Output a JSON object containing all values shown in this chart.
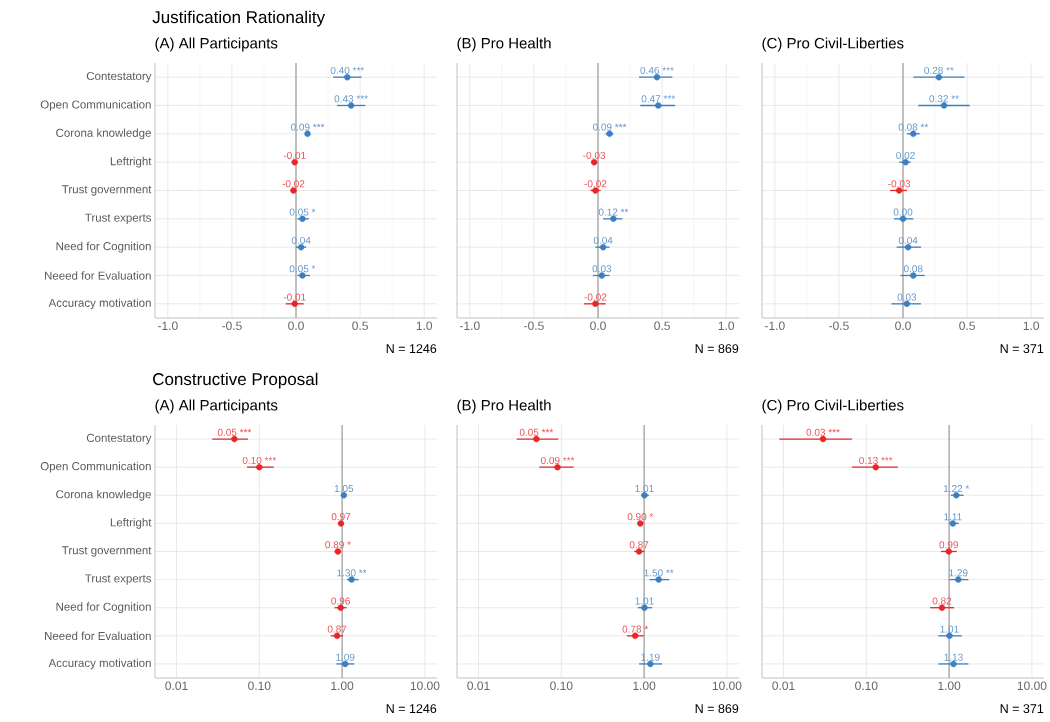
{
  "chart_data": [
    {
      "type": "scatter",
      "orientation": "horizontal",
      "title": "Justification Rationality",
      "subtitle": "(A) All Participants",
      "categories": [
        "Contestatory",
        "Open Communication",
        "Corona knowledge",
        "Leftright",
        "Trust government",
        "Trust experts",
        "Need for Cognition",
        "Neeed for Evaluation",
        "Accuracy motivation"
      ],
      "values": [
        0.4,
        0.43,
        0.09,
        -0.01,
        -0.02,
        0.05,
        0.04,
        0.05,
        -0.01
      ],
      "errors": [
        [
          0.29,
          0.51
        ],
        [
          0.32,
          0.54
        ],
        [
          0.07,
          0.11
        ],
        [
          -0.03,
          0.01
        ],
        [
          -0.04,
          0.0
        ],
        [
          0.01,
          0.1
        ],
        [
          0.0,
          0.08
        ],
        [
          0.01,
          0.11
        ],
        [
          -0.08,
          0.06
        ]
      ],
      "value_labels": [
        "0.40 ***",
        "0.43 ***",
        "0.09 ***",
        "-0.01",
        "-0.02",
        "0.05 *",
        "0.04",
        "0.05 *",
        "-0.01"
      ],
      "colors": [
        "#3a7fc1",
        "#3a7fc1",
        "#3a7fc1",
        "#e8262a",
        "#e8262a",
        "#3a7fc1",
        "#3a7fc1",
        "#3a7fc1",
        "#e8262a"
      ],
      "xlim": [
        -1.1,
        1.1
      ],
      "xticks": [
        {
          "value": -1,
          "label": "-1.0"
        },
        -0.5,
        {
          "value": 0,
          "label": "0.0"
        },
        0.5,
        {
          "value": 1,
          "label": "1.0"
        }
      ],
      "ref_lines": [
        {
          "axis": "x",
          "value": 0,
          "color": "#8c8c8c"
        }
      ],
      "annotations": [
        "N = 1246"
      ],
      "grid": true,
      "marker": "circle"
    },
    {
      "type": "scatter",
      "orientation": "horizontal",
      "subtitle": "(B) Pro Health",
      "categories": [
        null,
        null,
        null,
        null,
        null,
        null,
        null,
        null,
        null
      ],
      "values": [
        0.46,
        0.47,
        0.09,
        -0.03,
        -0.02,
        0.12,
        0.04,
        0.03,
        -0.02
      ],
      "errors": [
        [
          0.32,
          0.58
        ],
        [
          0.33,
          0.6
        ],
        [
          0.06,
          0.12
        ],
        [
          -0.05,
          -0.01
        ],
        [
          -0.06,
          0.02
        ],
        [
          0.04,
          0.19
        ],
        [
          -0.02,
          0.09
        ],
        [
          -0.04,
          0.09
        ],
        [
          -0.11,
          0.06
        ]
      ],
      "value_labels": [
        "0.46 ***",
        "0.47 ***",
        "0.09 ***",
        "-0.03",
        "-0.02",
        "0.12 **",
        "0.04",
        "0.03",
        "-0.02"
      ],
      "colors": [
        "#3a7fc1",
        "#3a7fc1",
        "#3a7fc1",
        "#e8262a",
        "#e8262a",
        "#3a7fc1",
        "#3a7fc1",
        "#3a7fc1",
        "#e8262a"
      ],
      "xlim": [
        -1.1,
        1.1
      ],
      "xticks": [
        {
          "value": -1,
          "label": "-1.0"
        },
        -0.5,
        {
          "value": 0,
          "label": "0.0"
        },
        0.5,
        {
          "value": 1,
          "label": "1.0"
        }
      ],
      "ref_lines": [
        {
          "axis": "x",
          "value": 0,
          "color": "#8c8c8c"
        }
      ],
      "annotations": [
        "N = 869"
      ],
      "grid": true,
      "marker": "circle",
      "tick_labels": "x"
    },
    {
      "type": "scatter",
      "orientation": "horizontal",
      "subtitle": "(C) Pro Civil-Liberties",
      "categories": [
        null,
        null,
        null,
        null,
        null,
        null,
        null,
        null,
        null
      ],
      "values": [
        0.28,
        0.32,
        0.08,
        0.02,
        -0.03,
        0.0,
        0.04,
        0.08,
        0.03
      ],
      "errors": [
        [
          0.08,
          0.48
        ],
        [
          0.12,
          0.52
        ],
        [
          0.03,
          0.13
        ],
        [
          -0.03,
          0.06
        ],
        [
          -0.1,
          0.03
        ],
        [
          -0.07,
          0.08
        ],
        [
          -0.05,
          0.14
        ],
        [
          -0.02,
          0.17
        ],
        [
          -0.09,
          0.14
        ]
      ],
      "value_labels": [
        "0.28 **",
        "0.32 **",
        "0.08 **",
        "0.02",
        "-0.03",
        "0.00",
        "0.04",
        "0.08",
        "0.03"
      ],
      "colors": [
        "#3a7fc1",
        "#3a7fc1",
        "#3a7fc1",
        "#3a7fc1",
        "#e8262a",
        "#3a7fc1",
        "#3a7fc1",
        "#3a7fc1",
        "#3a7fc1"
      ],
      "xlim": [
        -1.1,
        1.1
      ],
      "xticks": [
        {
          "value": -1,
          "label": "-1.0"
        },
        -0.5,
        {
          "value": 0,
          "label": "0.0"
        },
        0.5,
        {
          "value": 1,
          "label": "1.0"
        }
      ],
      "ref_lines": [
        {
          "axis": "x",
          "value": 0,
          "color": "#8c8c8c"
        }
      ],
      "annotations": [
        "N = 371"
      ],
      "grid": true,
      "marker": "circle",
      "tick_labels": "x"
    },
    {
      "type": "scatter",
      "orientation": "horizontal",
      "title": "Constructive Proposal",
      "subtitle": "(A) All Participants",
      "categories": [
        "Contestatory",
        "Open Communication",
        "Corona knowledge",
        "Leftright",
        "Trust government",
        "Trust experts",
        "Need for Cognition",
        "Neeed for Evaluation",
        "Accuracy motivation"
      ],
      "values": [
        0.05,
        0.1,
        1.05,
        0.97,
        0.89,
        1.3,
        0.96,
        0.87,
        1.09
      ],
      "errors": [
        [
          0.027,
          0.073
        ],
        [
          0.071,
          0.149
        ],
        [
          1.0,
          1.1
        ],
        [
          0.93,
          1.01
        ],
        [
          0.81,
          0.97
        ],
        [
          1.14,
          1.58
        ],
        [
          0.81,
          1.13
        ],
        [
          0.73,
          1.03
        ],
        [
          0.85,
          1.4
        ]
      ],
      "value_labels": [
        "0.05 ***",
        "0.10 ***",
        "1.05",
        "0.97",
        "0.89 *",
        "1.30 **",
        "0.96",
        "0.87",
        "1.09"
      ],
      "colors": [
        "#e8262a",
        "#e8262a",
        "#3a7fc1",
        "#e8262a",
        "#e8262a",
        "#3a7fc1",
        "#e8262a",
        "#e8262a",
        "#3a7fc1"
      ],
      "log": "x",
      "xlim": [
        0.0055,
        14
      ],
      "xticks": [
        0.01,
        {
          "value": 0.1,
          "label": "0.10"
        },
        {
          "value": 1,
          "label": "1.00"
        },
        {
          "value": 10,
          "label": "10.00"
        }
      ],
      "ref_lines": [
        {
          "axis": "x",
          "value": 1,
          "color": "#8c8c8c"
        }
      ],
      "annotations": [
        "N = 1246"
      ],
      "grid": true,
      "marker": "circle"
    },
    {
      "type": "scatter",
      "orientation": "horizontal",
      "subtitle": "(B) Pro Health",
      "categories": [
        null,
        null,
        null,
        null,
        null,
        null,
        null,
        null,
        null
      ],
      "values": [
        0.05,
        0.09,
        1.01,
        0.9,
        0.87,
        1.5,
        1.01,
        0.78,
        1.19
      ],
      "errors": [
        [
          0.029,
          0.092
        ],
        [
          0.054,
          0.141
        ],
        [
          0.92,
          1.14
        ],
        [
          0.85,
          0.96
        ],
        [
          0.76,
          1.01
        ],
        [
          1.16,
          2.01
        ],
        [
          0.84,
          1.25
        ],
        [
          0.62,
          0.99
        ],
        [
          0.87,
          1.65
        ]
      ],
      "value_labels": [
        "0.05 ***",
        "0.09 ***",
        "1.01",
        "0.90 *",
        "0.87",
        "1.50 **",
        "1.01",
        "0.78 *",
        "1.19"
      ],
      "colors": [
        "#e8262a",
        "#e8262a",
        "#3a7fc1",
        "#e8262a",
        "#e8262a",
        "#3a7fc1",
        "#3a7fc1",
        "#e8262a",
        "#3a7fc1"
      ],
      "log": "x",
      "xlim": [
        0.0055,
        14
      ],
      "xticks": [
        0.01,
        {
          "value": 0.1,
          "label": "0.10"
        },
        {
          "value": 1,
          "label": "1.00"
        },
        {
          "value": 10,
          "label": "10.00"
        }
      ],
      "ref_lines": [
        {
          "axis": "x",
          "value": 1,
          "color": "#8c8c8c"
        }
      ],
      "annotations": [
        "N = 869"
      ],
      "grid": true,
      "marker": "circle",
      "tick_labels": "x"
    },
    {
      "type": "scatter",
      "orientation": "horizontal",
      "subtitle": "(C) Pro Civil-Liberties",
      "categories": [
        null,
        null,
        null,
        null,
        null,
        null,
        null,
        null,
        null
      ],
      "values": [
        0.03,
        0.13,
        1.22,
        1.11,
        0.99,
        1.29,
        0.82,
        1.01,
        1.13
      ],
      "errors": [
        [
          0.0089,
          0.067
        ],
        [
          0.067,
          0.24
        ],
        [
          1.05,
          1.49
        ],
        [
          1.01,
          1.31
        ],
        [
          0.8,
          1.24
        ],
        [
          1.01,
          1.71
        ],
        [
          0.59,
          1.15
        ],
        [
          0.74,
          1.42
        ],
        [
          0.74,
          1.71
        ]
      ],
      "value_labels": [
        "0.03 ***",
        "0.13 ***",
        "1.22 *",
        "1.11",
        "0.99",
        "1.29",
        "0.82",
        "1.01",
        "1.13"
      ],
      "colors": [
        "#e8262a",
        "#e8262a",
        "#3a7fc1",
        "#3a7fc1",
        "#e8262a",
        "#3a7fc1",
        "#e8262a",
        "#3a7fc1",
        "#3a7fc1"
      ],
      "log": "x",
      "xlim": [
        0.0055,
        14
      ],
      "xticks": [
        0.01,
        {
          "value": 0.1,
          "label": "0.10"
        },
        {
          "value": 1,
          "label": "1.00"
        },
        {
          "value": 10,
          "label": "10.00"
        }
      ],
      "ref_lines": [
        {
          "axis": "x",
          "value": 1,
          "color": "#8c8c8c"
        }
      ],
      "annotations": [
        "N = 371"
      ],
      "grid": true,
      "marker": "circle",
      "tick_labels": "x"
    }
  ]
}
